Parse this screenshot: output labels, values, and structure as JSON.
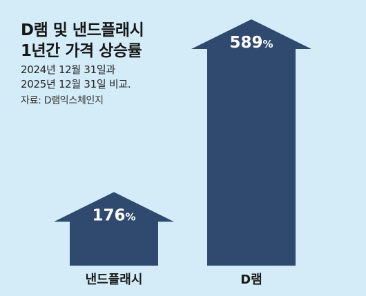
{
  "title_lines": [
    "D램 및 낸드플래시",
    "1년간 가격 상승률"
  ],
  "subtitle_lines": [
    "2024년 12월 31일과",
    "2025년 12월 31일 비교."
  ],
  "source": "자료: D램익스체인지",
  "colors": {
    "background": "#d3ecf8",
    "arrow": "#2f4a6e"
  },
  "chart_data": {
    "type": "bar",
    "style": "arrow",
    "categories": [
      "낸드플래시",
      "D램"
    ],
    "values": [
      176,
      589
    ],
    "value_labels": [
      "176%",
      "589%"
    ],
    "unit": "%",
    "ylim": [
      0,
      589
    ],
    "grid": false,
    "legend": "none"
  }
}
